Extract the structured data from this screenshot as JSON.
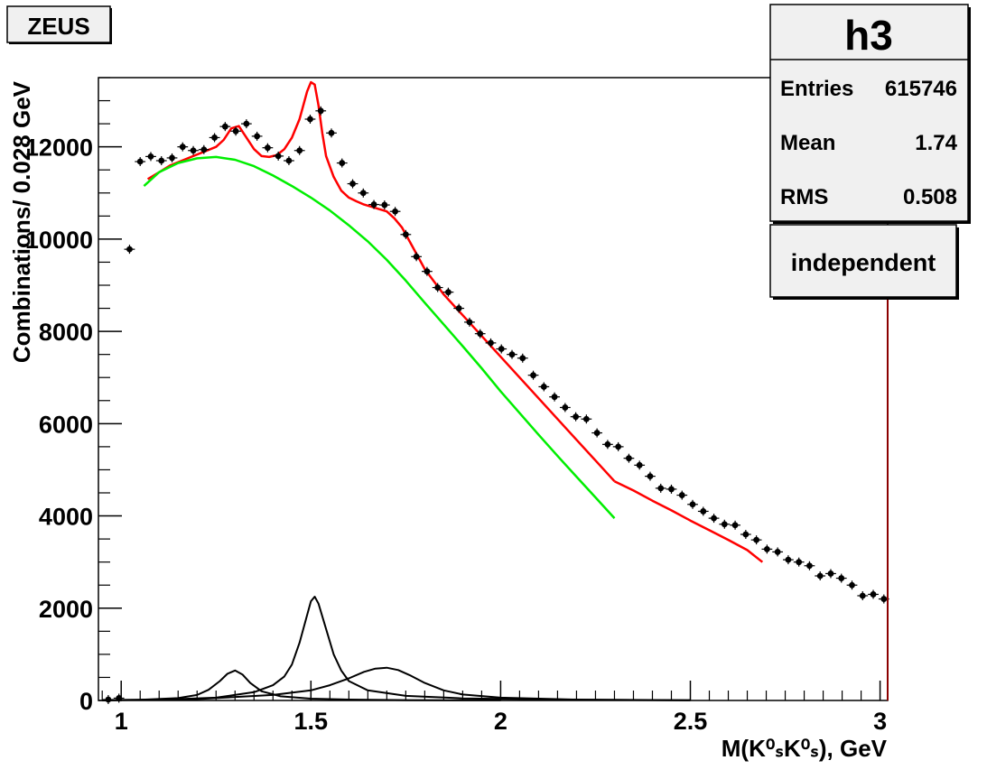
{
  "experiment_label": "ZEUS",
  "stats_box": {
    "name": "h3",
    "entries_label": "Entries",
    "entries_value": "615746",
    "mean_label": "Mean",
    "mean_value": "1.74",
    "rms_label": "RMS",
    "rms_value": "0.508"
  },
  "fit_label": "independent",
  "colors": {
    "total_fit": "#ff0000",
    "background_fit": "#00ee00",
    "resonances": "#000000",
    "data": "#000000",
    "marker_line": "#8b0000"
  },
  "chart_data": {
    "type": "scatter",
    "xlabel": "M(K⁰ₛK⁰ₛ), GeV",
    "ylabel": "Combinations/ 0.028 GeV",
    "xlim": [
      0.94,
      3.02
    ],
    "ylim": [
      0,
      13500
    ],
    "x_ticks": [
      "1",
      "1.5",
      "2",
      "2.5",
      "3"
    ],
    "y_ticks": [
      "0",
      "2000",
      "4000",
      "6000",
      "8000",
      "10000",
      "12000"
    ],
    "data_points": {
      "x": [
        0.966,
        0.994,
        1.022,
        1.05,
        1.078,
        1.106,
        1.134,
        1.162,
        1.19,
        1.218,
        1.246,
        1.274,
        1.302,
        1.33,
        1.358,
        1.386,
        1.414,
        1.442,
        1.47,
        1.498,
        1.526,
        1.554,
        1.582,
        1.61,
        1.638,
        1.666,
        1.694,
        1.722,
        1.75,
        1.778,
        1.806,
        1.834,
        1.862,
        1.89,
        1.918,
        1.946,
        1.974,
        2.002,
        2.03,
        2.058,
        2.086,
        2.114,
        2.142,
        2.17,
        2.198,
        2.226,
        2.254,
        2.282,
        2.31,
        2.338,
        2.366,
        2.394,
        2.422,
        2.45,
        2.478,
        2.506,
        2.534,
        2.562,
        2.59,
        2.618,
        2.646,
        2.674,
        2.702,
        2.73,
        2.758,
        2.786,
        2.814,
        2.842,
        2.87,
        2.898,
        2.926,
        2.954,
        2.982,
        3.01
      ],
      "y": [
        20,
        50,
        9780,
        11680,
        11790,
        11700,
        11760,
        12000,
        11920,
        11940,
        12200,
        12440,
        12340,
        12500,
        12230,
        11980,
        11800,
        11700,
        11920,
        12600,
        12780,
        12300,
        11650,
        11200,
        11000,
        10750,
        10740,
        10600,
        10100,
        9620,
        9300,
        8950,
        8850,
        8500,
        8200,
        7950,
        7750,
        7620,
        7500,
        7420,
        7050,
        6800,
        6580,
        6350,
        6150,
        6100,
        5800,
        5550,
        5500,
        5250,
        5100,
        4860,
        4600,
        4580,
        4450,
        4250,
        4100,
        3950,
        3820,
        3800,
        3600,
        3480,
        3280,
        3220,
        3050,
        3000,
        2920,
        2700,
        2750,
        2650,
        2500,
        2270,
        2300,
        2200
      ]
    },
    "series": [
      {
        "x": [
          1.07,
          1.1,
          1.13,
          1.16,
          1.19,
          1.22,
          1.25,
          1.27,
          1.29,
          1.31,
          1.33,
          1.35,
          1.37,
          1.39,
          1.41,
          1.43,
          1.45,
          1.47,
          1.48,
          1.49,
          1.5,
          1.51,
          1.52,
          1.53,
          1.54,
          1.56,
          1.58,
          1.6,
          1.62,
          1.64,
          1.66,
          1.68,
          1.7,
          1.72,
          1.74,
          1.76,
          1.8,
          1.85,
          1.9,
          1.95,
          2.0,
          2.05,
          2.1,
          2.15,
          2.2,
          2.25,
          2.3
        ],
        "y": [
          11300,
          11450,
          11600,
          11700,
          11800,
          11900,
          12000,
          12150,
          12400,
          12450,
          12200,
          11950,
          11800,
          11780,
          11820,
          11950,
          12200,
          12600,
          12900,
          13200,
          13400,
          13350,
          12900,
          12300,
          11800,
          11350,
          11050,
          10900,
          10820,
          10750,
          10700,
          10650,
          10600,
          10450,
          10250,
          9950,
          9350,
          8800,
          8350,
          7900,
          7450,
          7000,
          6550,
          6100,
          5650,
          5200,
          4750
        ]
      },
      {
        "x": [
          1.06,
          1.1,
          1.15,
          1.2,
          1.25,
          1.3,
          1.35,
          1.4,
          1.45,
          1.5,
          1.55,
          1.6,
          1.65,
          1.7,
          1.75,
          1.8,
          1.85,
          1.9,
          1.95,
          2.0,
          2.05,
          2.1,
          2.15,
          2.2,
          2.25,
          2.3
        ],
        "y": [
          11150,
          11450,
          11650,
          11750,
          11780,
          11720,
          11580,
          11380,
          11150,
          10900,
          10620,
          10300,
          9950,
          9550,
          9100,
          8620,
          8150,
          7680,
          7200,
          6700,
          6230,
          5760,
          5300,
          4850,
          4400,
          3950
        ]
      },
      {
        "x": [
          2.3,
          2.35,
          2.4,
          2.45,
          2.5,
          2.55,
          2.6,
          2.65,
          2.69
        ],
        "y": [
          4750,
          4550,
          4330,
          4120,
          3900,
          3690,
          3480,
          3260,
          3000
        ]
      },
      {
        "x": [
          0.95,
          1.05,
          1.15,
          1.2,
          1.23,
          1.26,
          1.28,
          1.3,
          1.32,
          1.34,
          1.37,
          1.42,
          1.5,
          1.6,
          1.75,
          2.0
        ],
        "y": [
          5,
          15,
          50,
          120,
          230,
          420,
          580,
          650,
          560,
          380,
          200,
          90,
          40,
          20,
          8,
          3
        ]
      },
      {
        "x": [
          0.95,
          1.1,
          1.25,
          1.35,
          1.4,
          1.43,
          1.45,
          1.47,
          1.49,
          1.5,
          1.51,
          1.52,
          1.54,
          1.56,
          1.58,
          1.6,
          1.65,
          1.75,
          1.9,
          2.2,
          2.5
        ],
        "y": [
          5,
          15,
          60,
          180,
          330,
          520,
          780,
          1250,
          1850,
          2150,
          2250,
          2100,
          1550,
          1000,
          650,
          420,
          220,
          100,
          45,
          15,
          5
        ]
      },
      {
        "x": [
          0.95,
          1.2,
          1.4,
          1.5,
          1.55,
          1.6,
          1.64,
          1.67,
          1.7,
          1.73,
          1.76,
          1.8,
          1.85,
          1.9,
          2.0,
          2.2,
          2.5
        ],
        "y": [
          5,
          30,
          120,
          220,
          330,
          480,
          620,
          690,
          710,
          660,
          550,
          380,
          220,
          130,
          60,
          20,
          6
        ]
      }
    ]
  }
}
